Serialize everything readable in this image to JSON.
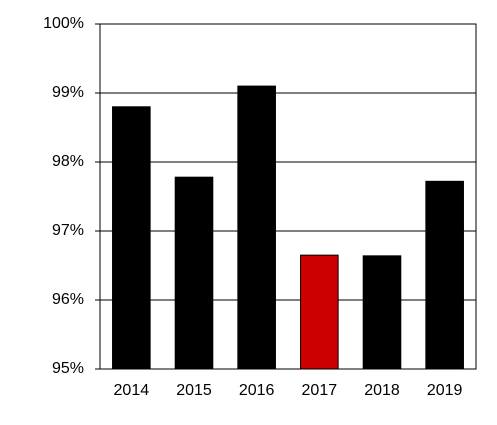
{
  "chart_data": {
    "type": "bar",
    "categories": [
      "2014",
      "2015",
      "2016",
      "2017",
      "2018",
      "2019"
    ],
    "values": [
      98.8,
      97.78,
      99.1,
      96.65,
      96.64,
      97.72
    ],
    "colors": [
      "#000000",
      "#000000",
      "#000000",
      "#cc0000",
      "#000000",
      "#000000"
    ],
    "ylim": [
      95,
      100
    ],
    "yticks": [
      {
        "value": 95,
        "label": "95%"
      },
      {
        "value": 96,
        "label": "96%"
      },
      {
        "value": 97,
        "label": "97%"
      },
      {
        "value": 98,
        "label": "98%"
      },
      {
        "value": 99,
        "label": "99%"
      },
      {
        "value": 100,
        "label": "100%"
      }
    ],
    "grid": true
  }
}
